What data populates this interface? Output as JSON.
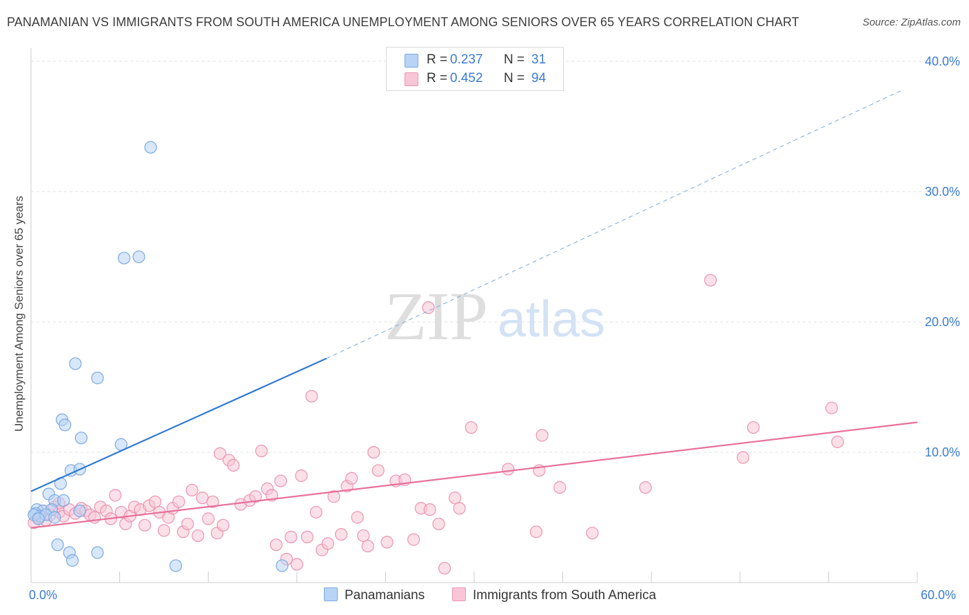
{
  "title": "PANAMANIAN VS IMMIGRANTS FROM SOUTH AMERICA UNEMPLOYMENT AMONG SENIORS OVER 65 YEARS CORRELATION CHART",
  "source": "Source: ZipAtlas.com",
  "watermark": {
    "zip": "ZIP",
    "atlas": "atlas"
  },
  "legend": {
    "r_label": "R =",
    "n_label": "N =",
    "rows": [
      {
        "r": "0.237",
        "n": "31"
      },
      {
        "r": "0.452",
        "n": "94"
      }
    ]
  },
  "colors": {
    "blue_fill": "#b8d3f5",
    "blue_stroke": "#7ba9e0",
    "blue_line": "#2f78d4",
    "pink_fill": "#f8c6d6",
    "pink_stroke": "#ec93b2",
    "pink_line": "#e8709a",
    "axis_text": "#3a7bd5",
    "grid": "#e2e2e2"
  },
  "chart_data": {
    "type": "scatter",
    "title": "PANAMANIAN VS IMMIGRANTS FROM SOUTH AMERICA UNEMPLOYMENT AMONG SENIORS OVER 65 YEARS CORRELATION CHART",
    "xlabel": "",
    "ylabel": "Unemployment Among Seniors over 65 years",
    "xlim": [
      0,
      60
    ],
    "ylim": [
      0,
      41
    ],
    "x_tick_labels": [
      "0.0%",
      "60.0%"
    ],
    "y_ticks": [
      10,
      20,
      30,
      40
    ],
    "y_tick_labels": [
      "10.0%",
      "20.0%",
      "30.0%",
      "40.0%"
    ],
    "grid": true,
    "series": [
      {
        "name": "Panamanians",
        "r": 0.237,
        "n": 31,
        "trend": {
          "x0": 0,
          "y0": 7.0,
          "x1": 20.0,
          "y1": 17.2,
          "dash_to_x": 59.0,
          "dash_to_y": 37.8
        },
        "points": [
          [
            8.1,
            33.4
          ],
          [
            6.3,
            24.9
          ],
          [
            7.3,
            25.0
          ],
          [
            3.0,
            16.8
          ],
          [
            4.5,
            15.7
          ],
          [
            2.1,
            12.5
          ],
          [
            2.3,
            12.1
          ],
          [
            3.4,
            11.1
          ],
          [
            6.1,
            10.6
          ],
          [
            2.7,
            8.6
          ],
          [
            3.3,
            8.7
          ],
          [
            2.0,
            7.6
          ],
          [
            1.2,
            6.8
          ],
          [
            1.6,
            6.3
          ],
          [
            2.2,
            6.3
          ],
          [
            0.4,
            5.6
          ],
          [
            0.8,
            5.5
          ],
          [
            1.4,
            5.6
          ],
          [
            0.3,
            5.3
          ],
          [
            0.6,
            5.1
          ],
          [
            0.2,
            5.2
          ],
          [
            1.0,
            5.2
          ],
          [
            1.6,
            5.0
          ],
          [
            0.5,
            4.9
          ],
          [
            3.3,
            5.5
          ],
          [
            1.8,
            2.9
          ],
          [
            2.6,
            2.3
          ],
          [
            2.8,
            1.7
          ],
          [
            4.5,
            2.3
          ],
          [
            9.8,
            1.3
          ],
          [
            17.0,
            1.3
          ]
        ]
      },
      {
        "name": "Immigrants from South America",
        "r": 0.452,
        "n": 94,
        "trend": {
          "x0": 0,
          "y0": 4.2,
          "x1": 60,
          "y1": 12.3
        },
        "points": [
          [
            0.2,
            4.6
          ],
          [
            0.5,
            5.0
          ],
          [
            0.8,
            5.5
          ],
          [
            1.0,
            4.8
          ],
          [
            1.3,
            5.2
          ],
          [
            1.6,
            5.8
          ],
          [
            1.9,
            5.4
          ],
          [
            2.2,
            5.1
          ],
          [
            2.6,
            5.6
          ],
          [
            3.0,
            5.3
          ],
          [
            3.4,
            5.7
          ],
          [
            3.7,
            5.5
          ],
          [
            4.0,
            5.2
          ],
          [
            4.3,
            5.0
          ],
          [
            4.7,
            5.8
          ],
          [
            5.1,
            5.5
          ],
          [
            5.4,
            4.9
          ],
          [
            5.7,
            6.7
          ],
          [
            6.1,
            5.4
          ],
          [
            6.4,
            4.5
          ],
          [
            6.7,
            5.1
          ],
          [
            7.0,
            5.8
          ],
          [
            7.4,
            5.6
          ],
          [
            7.7,
            4.4
          ],
          [
            8.0,
            5.9
          ],
          [
            8.4,
            6.2
          ],
          [
            8.7,
            5.4
          ],
          [
            9.0,
            4.0
          ],
          [
            9.3,
            5.0
          ],
          [
            9.6,
            5.7
          ],
          [
            10.0,
            6.2
          ],
          [
            10.3,
            3.9
          ],
          [
            10.6,
            4.5
          ],
          [
            10.9,
            7.1
          ],
          [
            11.3,
            3.6
          ],
          [
            11.6,
            6.5
          ],
          [
            12.0,
            4.9
          ],
          [
            12.3,
            6.2
          ],
          [
            12.6,
            3.8
          ],
          [
            13.0,
            4.4
          ],
          [
            12.8,
            9.9
          ],
          [
            13.4,
            9.4
          ],
          [
            13.7,
            9.0
          ],
          [
            14.2,
            6.0
          ],
          [
            14.8,
            6.3
          ],
          [
            15.2,
            6.6
          ],
          [
            15.6,
            10.1
          ],
          [
            16.0,
            7.2
          ],
          [
            16.3,
            6.7
          ],
          [
            16.6,
            2.9
          ],
          [
            16.9,
            7.8
          ],
          [
            17.3,
            1.8
          ],
          [
            17.6,
            3.5
          ],
          [
            18.0,
            1.4
          ],
          [
            18.3,
            8.2
          ],
          [
            18.7,
            3.5
          ],
          [
            19.0,
            14.3
          ],
          [
            19.3,
            5.4
          ],
          [
            19.7,
            2.5
          ],
          [
            20.1,
            3.0
          ],
          [
            20.5,
            6.6
          ],
          [
            21.0,
            3.7
          ],
          [
            21.4,
            7.4
          ],
          [
            21.7,
            8.0
          ],
          [
            22.1,
            5.0
          ],
          [
            22.5,
            3.6
          ],
          [
            22.8,
            2.8
          ],
          [
            23.2,
            10.0
          ],
          [
            23.5,
            8.6
          ],
          [
            24.1,
            3.1
          ],
          [
            24.7,
            7.8
          ],
          [
            25.3,
            7.9
          ],
          [
            25.9,
            3.3
          ],
          [
            26.4,
            5.7
          ],
          [
            26.9,
            21.1
          ],
          [
            27.0,
            5.6
          ],
          [
            27.6,
            4.5
          ],
          [
            28.0,
            1.1
          ],
          [
            28.7,
            6.5
          ],
          [
            29.0,
            5.7
          ],
          [
            29.8,
            11.9
          ],
          [
            32.3,
            8.7
          ],
          [
            34.4,
            8.6
          ],
          [
            34.6,
            11.3
          ],
          [
            34.2,
            3.9
          ],
          [
            35.8,
            7.3
          ],
          [
            38.0,
            3.8
          ],
          [
            41.6,
            7.3
          ],
          [
            46.0,
            23.2
          ],
          [
            48.9,
            11.9
          ],
          [
            48.2,
            9.6
          ],
          [
            54.2,
            13.4
          ],
          [
            54.6,
            10.8
          ],
          [
            1.9,
            6.1
          ]
        ]
      }
    ]
  },
  "bottom_legend": {
    "items": [
      {
        "label": "Panamanians"
      },
      {
        "label": "Immigrants from South America"
      }
    ]
  }
}
